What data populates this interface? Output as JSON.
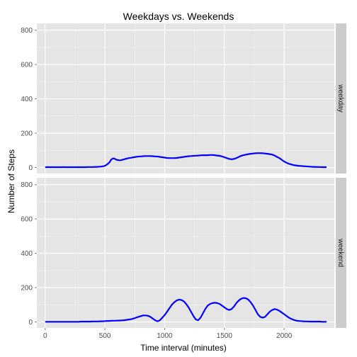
{
  "chart_data": {
    "type": "line",
    "title": "Weekdays vs. Weekends",
    "xlabel": "Time interval (minutes)",
    "ylabel": "Number of Steps",
    "xlim": [
      -70,
      2420
    ],
    "x_ticks": [
      0,
      500,
      1000,
      1500,
      2000
    ],
    "grid": true,
    "line_color": "#0000ff",
    "panel_background": "#e5e5e5",
    "strip_background": "#cccccc",
    "grid_color": "#ffffff",
    "panels": [
      {
        "strip_label": "weekday",
        "ylim": [
          -35,
          840
        ],
        "y_ticks": [
          0,
          200,
          400,
          600,
          800
        ],
        "series": [
          {
            "x": [
              0,
              10,
              15,
              20,
              25,
              30,
              40,
              45,
              50,
              60,
              75,
              90,
              95,
              100,
              105,
              110,
              115,
              120,
              130,
              140,
              145,
              150,
              155,
              160,
              170,
              180,
              200,
              220,
              240,
              260,
              280,
              300,
              320,
              330,
              340,
              350,
              360,
              370,
              390,
              400,
              420,
              440,
              450,
              460,
              470,
              480,
              490,
              500,
              510,
              520,
              530,
              540,
              545,
              550,
              555,
              560,
              565,
              570,
              575,
              580,
              585,
              590,
              595,
              600,
              605,
              610,
              615,
              620,
              625,
              630,
              635,
              640,
              650,
              660,
              670,
              680,
              700,
              720,
              740,
              760,
              780,
              800,
              820,
              840,
              860,
              880,
              900,
              920,
              940,
              960,
              980,
              1000,
              1020,
              1040,
              1060,
              1080,
              1100,
              1120,
              1140,
              1160,
              1180,
              1200,
              1220,
              1240,
              1260,
              1280,
              1300,
              1320,
              1340,
              1360,
              1380,
              1400,
              1420,
              1440,
              1460,
              1480,
              1500,
              1520,
              1540,
              1560,
              1580,
              1600,
              1620,
              1640,
              1660,
              1680,
              1700,
              1720,
              1740,
              1760,
              1780,
              1800,
              1820,
              1840,
              1860,
              1880,
              1900,
              1920,
              1940,
              1960,
              1980,
              2000,
              2020,
              2040,
              2060,
              2080,
              2100,
              2120,
              2140,
              2160,
              2180,
              2200,
              2220,
              2240,
              2260,
              2280,
              2300,
              2320,
              2340,
              2355
            ],
            "y": [
              2,
              2,
              2,
              3,
              2,
              2,
              2,
              2,
              3,
              2,
              2,
              2,
              2,
              2,
              2,
              2,
              2,
              2,
              2,
              2,
              2,
              3,
              3,
              2,
              2,
              2,
              2,
              2,
              2,
              2,
              2,
              2,
              2,
              2,
              2,
              3,
              3,
              3,
              3,
              3,
              4,
              4,
              5,
              5,
              6,
              7,
              8,
              10,
              14,
              19,
              25,
              32,
              38,
              44,
              48,
              50,
              52,
              53,
              53,
              52,
              50,
              48,
              46,
              45,
              44,
              44,
              43,
              42,
              42,
              42,
              43,
              44,
              46,
              48,
              50,
              52,
              55,
              57,
              60,
              62,
              64,
              65,
              66,
              67,
              67,
              67,
              66,
              65,
              64,
              62,
              60,
              58,
              56,
              55,
              55,
              55,
              56,
              58,
              60,
              62,
              64,
              66,
              67,
              68,
              69,
              70,
              71,
              72,
              72,
              72,
              73,
              73,
              72,
              70,
              68,
              65,
              60,
              55,
              50,
              48,
              50,
              55,
              62,
              68,
              72,
              75,
              78,
              80,
              82,
              83,
              84,
              84,
              83,
              82,
              80,
              78,
              75,
              70,
              62,
              55,
              45,
              35,
              28,
              22,
              18,
              14,
              12,
              10,
              9,
              8,
              7,
              6,
              5,
              4,
              4,
              3,
              3,
              2,
              2,
              2
            ]
          }
        ]
      },
      {
        "strip_label": "weekend",
        "ylim": [
          -35,
          840
        ],
        "y_ticks": [
          0,
          200,
          400,
          600,
          800
        ],
        "series": [
          {
            "x": [
              0,
              20,
              40,
              60,
              80,
              100,
              120,
              140,
              160,
              180,
              200,
              220,
              240,
              260,
              280,
              300,
              320,
              340,
              360,
              380,
              400,
              420,
              440,
              460,
              480,
              500,
              520,
              540,
              560,
              580,
              600,
              620,
              640,
              660,
              680,
              700,
              720,
              740,
              760,
              780,
              800,
              820,
              840,
              860,
              880,
              900,
              920,
              940,
              960,
              980,
              1000,
              1020,
              1040,
              1060,
              1080,
              1100,
              1120,
              1140,
              1160,
              1180,
              1200,
              1220,
              1240,
              1260,
              1280,
              1300,
              1320,
              1340,
              1360,
              1380,
              1400,
              1420,
              1440,
              1460,
              1480,
              1500,
              1520,
              1540,
              1560,
              1580,
              1600,
              1620,
              1640,
              1660,
              1680,
              1700,
              1720,
              1740,
              1760,
              1780,
              1800,
              1820,
              1840,
              1860,
              1880,
              1900,
              1920,
              1940,
              1960,
              1980,
              2000,
              2020,
              2040,
              2060,
              2080,
              2100,
              2120,
              2140,
              2160,
              2180,
              2200,
              2220,
              2240,
              2260,
              2280,
              2300,
              2320,
              2340,
              2355
            ],
            "y": [
              1,
              1,
              1,
              1,
              1,
              1,
              1,
              1,
              1,
              1,
              1,
              1,
              1,
              1,
              1,
              2,
              2,
              2,
              2,
              2,
              3,
              3,
              3,
              4,
              4,
              5,
              6,
              6,
              7,
              7,
              8,
              8,
              9,
              10,
              12,
              14,
              16,
              20,
              25,
              30,
              34,
              38,
              38,
              36,
              30,
              20,
              10,
              4,
              10,
              25,
              40,
              60,
              80,
              100,
              115,
              125,
              130,
              128,
              120,
              105,
              85,
              60,
              35,
              15,
              10,
              25,
              50,
              75,
              95,
              105,
              110,
              112,
              110,
              105,
              95,
              85,
              75,
              70,
              75,
              90,
              110,
              125,
              135,
              140,
              138,
              130,
              115,
              95,
              70,
              45,
              30,
              25,
              30,
              45,
              60,
              70,
              75,
              72,
              65,
              55,
              45,
              35,
              25,
              18,
              12,
              8,
              6,
              5,
              4,
              3,
              3,
              2,
              2,
              2,
              2,
              2,
              1,
              1,
              1
            ]
          }
        ]
      }
    ]
  }
}
